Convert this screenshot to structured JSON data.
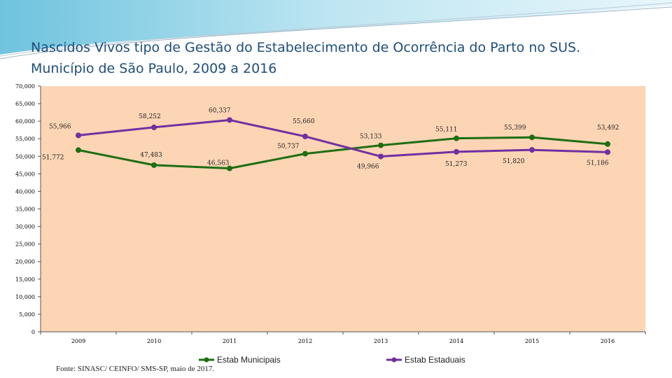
{
  "title": {
    "line1": "Nascidos Vivos tipo de Gestão do Estabelecimento de Ocorrência do Parto no SUS.",
    "line2": "Município de São Paulo, 2009 a 2016"
  },
  "source": "Fonte: SINASC/ CEINFO/ SMS-SP, maio de 2017.",
  "colors": {
    "background": "#fcd5b5",
    "municipal": "#1e6e12",
    "estadual": "#7030a0",
    "title": "#1f4e79"
  },
  "chart_data": {
    "type": "line",
    "title": "Nascidos Vivos tipo de Gestão do Estabelecimento de Ocorrência do Parto no SUS. Município de São Paulo, 2009 a 2016",
    "xlabel": "",
    "ylabel": "",
    "ylim": [
      0,
      70000
    ],
    "yticks": [
      0,
      5000,
      10000,
      15000,
      20000,
      25000,
      30000,
      35000,
      40000,
      45000,
      50000,
      55000,
      60000,
      65000,
      70000
    ],
    "ytick_labels": [
      "0",
      "5,000",
      "10,000",
      "15,000",
      "20,000",
      "25,000",
      "30,000",
      "35,000",
      "40,000",
      "45,000",
      "50,000",
      "55,000",
      "60,000",
      "65,000",
      "70,000"
    ],
    "categories": [
      "2009",
      "2010",
      "2011",
      "2012",
      "2013",
      "2014",
      "2015",
      "2016"
    ],
    "legend_position": "bottom",
    "series": [
      {
        "name": "Estab Municipais",
        "color": "#1e6e12",
        "values": [
          51772,
          47483,
          46563,
          50737,
          53133,
          55111,
          55399,
          53492
        ],
        "labels": [
          "51,772",
          "47,483",
          "46,563",
          "50,737",
          "53,133",
          "55,111",
          "55,399",
          "53,492"
        ]
      },
      {
        "name": "Estab Estaduais",
        "color": "#7030a0",
        "values": [
          55966,
          58252,
          60337,
          55660,
          49966,
          51273,
          51820,
          51186
        ],
        "labels": [
          "55,966",
          "58,252",
          "60,337",
          "55,660",
          "49,966",
          "51,273",
          "51,820",
          "51,186"
        ]
      }
    ]
  }
}
